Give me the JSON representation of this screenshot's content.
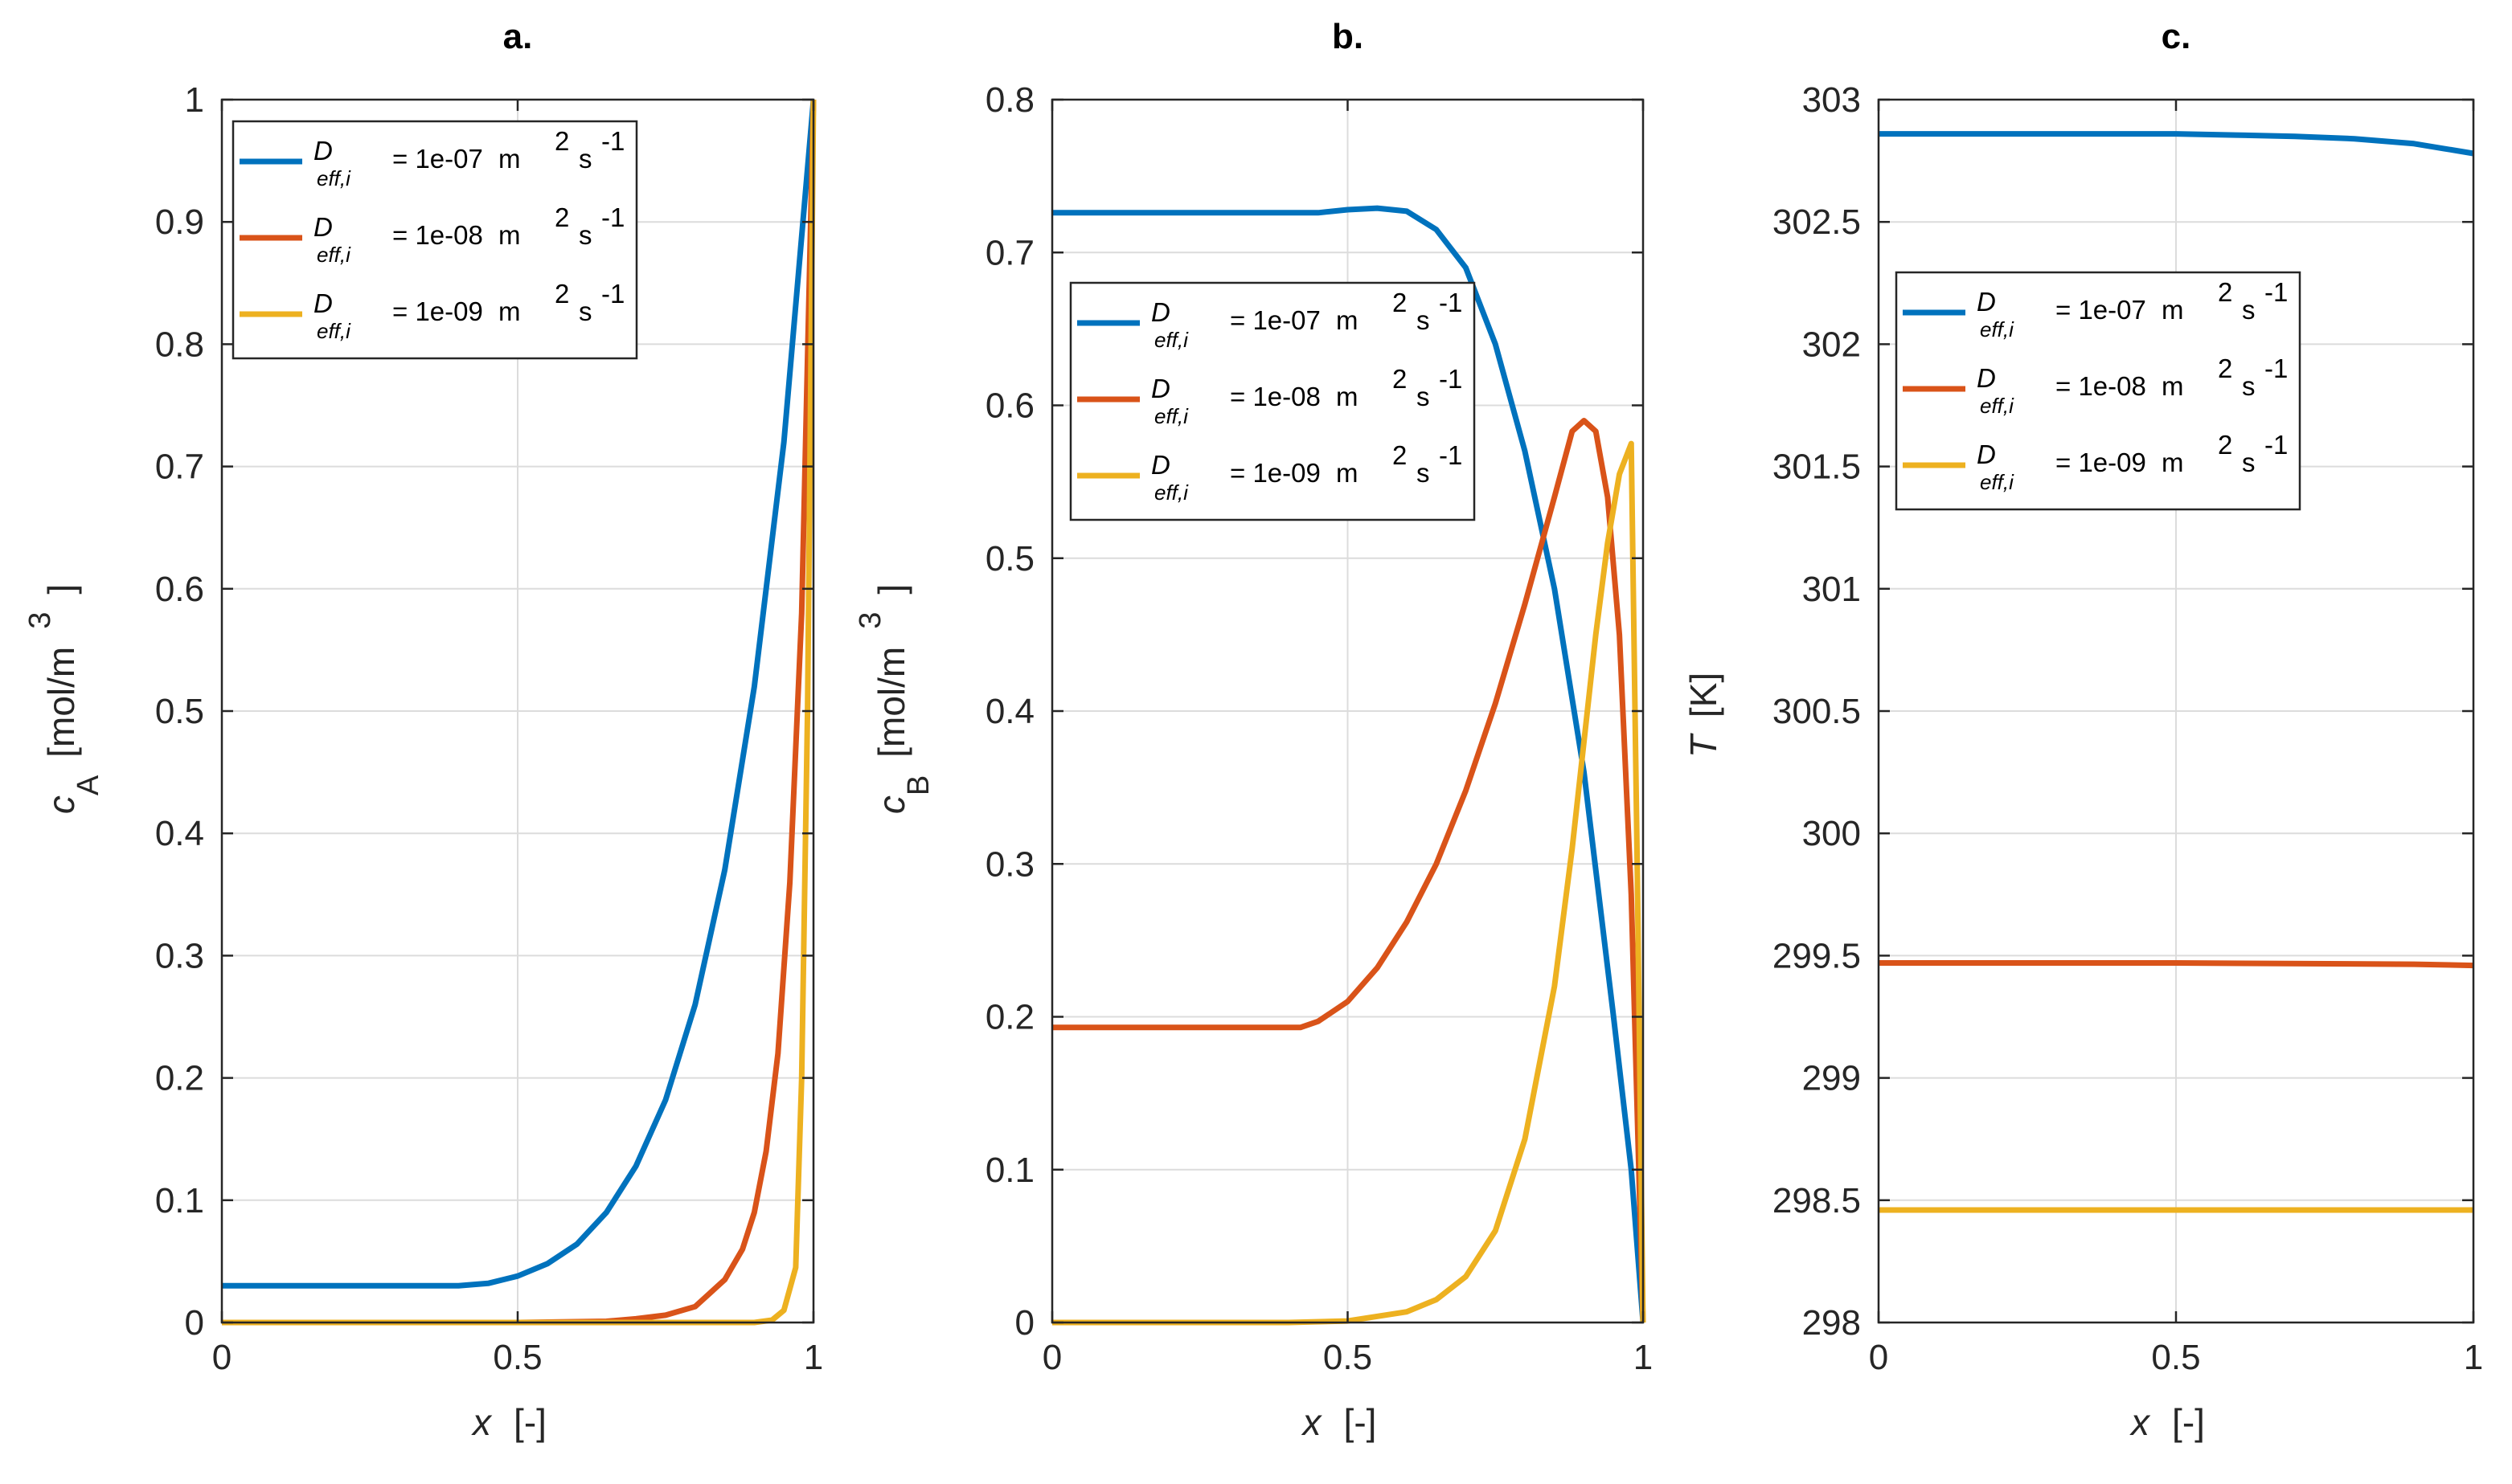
{
  "chart_data": [
    {
      "type": "line",
      "panel_label": "a.",
      "xlabel_var": "x",
      "xlabel_unit": "[-]",
      "ylabel_var": "c",
      "ylabel_sub": "A",
      "ylabel_unit": "[mol/m",
      "ylabel_sup": "3",
      "ylabel_close": "]",
      "xlim": [
        0,
        1
      ],
      "ylim": [
        0,
        1
      ],
      "xticks": [
        "0",
        "0.5",
        "1"
      ],
      "yticks": [
        "0",
        "0.1",
        "0.2",
        "0.3",
        "0.4",
        "0.5",
        "0.6",
        "0.7",
        "0.8",
        "0.9",
        "1"
      ],
      "grid": true,
      "legend_position": "top-left",
      "series": [
        {
          "name": "D_eff,i = 1e-07 m2 s-1",
          "color": "#0072BD",
          "x": [
            0,
            0.2,
            0.4,
            0.45,
            0.5,
            0.55,
            0.6,
            0.65,
            0.7,
            0.75,
            0.8,
            0.85,
            0.9,
            0.95,
            1.0
          ],
          "y": [
            0.03,
            0.03,
            0.03,
            0.032,
            0.038,
            0.048,
            0.064,
            0.09,
            0.128,
            0.182,
            0.26,
            0.37,
            0.52,
            0.72,
            1.0
          ]
        },
        {
          "name": "D_eff,i = 1e-08 m2 s-1",
          "color": "#D95319",
          "x": [
            0,
            0.5,
            0.65,
            0.7,
            0.75,
            0.8,
            0.85,
            0.88,
            0.9,
            0.92,
            0.94,
            0.96,
            0.98,
            1.0
          ],
          "y": [
            0,
            0,
            0.001,
            0.003,
            0.006,
            0.013,
            0.035,
            0.06,
            0.09,
            0.14,
            0.22,
            0.36,
            0.58,
            1.0
          ]
        },
        {
          "name": "D_eff,i = 1e-09 m2 s-1",
          "color": "#EDB120",
          "x": [
            0,
            0.9,
            0.93,
            0.95,
            0.97,
            0.98,
            0.99,
            1.0
          ],
          "y": [
            0,
            0,
            0.002,
            0.01,
            0.045,
            0.2,
            0.5,
            1.0
          ]
        }
      ]
    },
    {
      "type": "line",
      "panel_label": "b.",
      "xlabel_var": "x",
      "xlabel_unit": "[-]",
      "ylabel_var": "c",
      "ylabel_sub": "B",
      "ylabel_unit": "[mol/m",
      "ylabel_sup": "3",
      "ylabel_close": "]",
      "xlim": [
        0,
        1
      ],
      "ylim": [
        0,
        0.8
      ],
      "xticks": [
        "0",
        "0.5",
        "1"
      ],
      "yticks": [
        "0",
        "0.1",
        "0.2",
        "0.3",
        "0.4",
        "0.5",
        "0.6",
        "0.7",
        "0.8"
      ],
      "grid": true,
      "legend_position": "center-left",
      "series": [
        {
          "name": "D_eff,i = 1e-07 m2 s-1",
          "color": "#0072BD",
          "x": [
            0,
            0.2,
            0.4,
            0.45,
            0.5,
            0.55,
            0.6,
            0.65,
            0.7,
            0.75,
            0.8,
            0.85,
            0.9,
            0.95,
            0.98,
            1.0
          ],
          "y": [
            0.726,
            0.726,
            0.726,
            0.726,
            0.728,
            0.729,
            0.727,
            0.715,
            0.69,
            0.64,
            0.57,
            0.48,
            0.36,
            0.2,
            0.1,
            0.0
          ]
        },
        {
          "name": "D_eff,i = 1e-08 m2 s-1",
          "color": "#D95319",
          "x": [
            0,
            0.2,
            0.42,
            0.45,
            0.5,
            0.55,
            0.6,
            0.65,
            0.7,
            0.75,
            0.8,
            0.85,
            0.88,
            0.9,
            0.92,
            0.94,
            0.96,
            0.98,
            1.0
          ],
          "y": [
            0.193,
            0.193,
            0.193,
            0.197,
            0.21,
            0.232,
            0.262,
            0.3,
            0.348,
            0.405,
            0.47,
            0.54,
            0.583,
            0.59,
            0.583,
            0.54,
            0.45,
            0.28,
            0.0
          ]
        },
        {
          "name": "D_eff,i = 1e-09 m2 s-1",
          "color": "#EDB120",
          "x": [
            0,
            0.4,
            0.5,
            0.6,
            0.65,
            0.7,
            0.75,
            0.8,
            0.85,
            0.88,
            0.9,
            0.92,
            0.94,
            0.96,
            0.98,
            0.99,
            1.0
          ],
          "y": [
            0,
            0,
            0.001,
            0.007,
            0.015,
            0.03,
            0.06,
            0.12,
            0.22,
            0.31,
            0.38,
            0.45,
            0.51,
            0.555,
            0.575,
            0.3,
            0.0
          ]
        }
      ]
    },
    {
      "type": "line",
      "panel_label": "c.",
      "xlabel_var": "x",
      "xlabel_unit": "[-]",
      "ylabel_var": "T",
      "ylabel_sub": "",
      "ylabel_unit": "[K]",
      "ylabel_sup": "",
      "ylabel_close": "",
      "xlim": [
        0,
        1
      ],
      "ylim": [
        298,
        303
      ],
      "xticks": [
        "0",
        "0.5",
        "1"
      ],
      "yticks": [
        "298",
        "298.5",
        "299",
        "299.5",
        "300",
        "300.5",
        "301",
        "301.5",
        "302",
        "302.5",
        "303"
      ],
      "grid": true,
      "legend_position": "upper-left",
      "series": [
        {
          "name": "D_eff,i = 1e-07 m2 s-1",
          "color": "#0072BD",
          "x": [
            0,
            0.2,
            0.4,
            0.5,
            0.6,
            0.7,
            0.8,
            0.9,
            0.95,
            1.0
          ],
          "y": [
            302.86,
            302.86,
            302.86,
            302.86,
            302.855,
            302.85,
            302.84,
            302.82,
            302.8,
            302.78
          ]
        },
        {
          "name": "D_eff,i = 1e-08 m2 s-1",
          "color": "#D95319",
          "x": [
            0,
            0.5,
            0.9,
            1.0
          ],
          "y": [
            299.47,
            299.47,
            299.465,
            299.46
          ]
        },
        {
          "name": "D_eff,i = 1e-09 m2 s-1",
          "color": "#EDB120",
          "x": [
            0,
            0.5,
            1.0
          ],
          "y": [
            298.46,
            298.46,
            298.46
          ]
        }
      ]
    }
  ],
  "legend_labels": {
    "d_letter": "D",
    "d_sub": "eff,i",
    "unit_m": "m",
    "sup_2": "2",
    "unit_s": "s",
    "sup_neg1": "-1",
    "values": [
      "= 1e-07",
      "= 1e-08",
      "= 1e-09"
    ]
  }
}
